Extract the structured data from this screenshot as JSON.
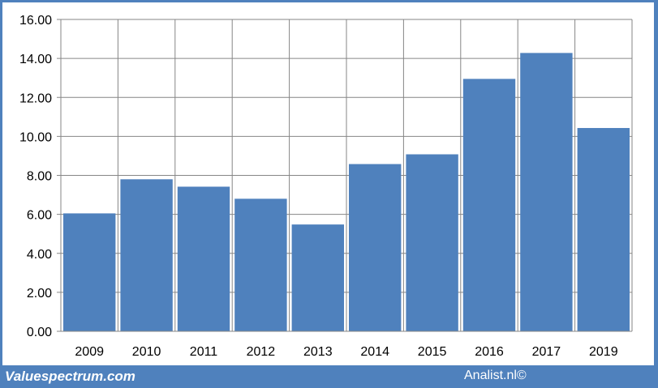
{
  "chart_data": {
    "type": "bar",
    "categories": [
      "2009",
      "2010",
      "2011",
      "2012",
      "2013",
      "2014",
      "2015",
      "2016",
      "2017",
      "2019"
    ],
    "values": [
      6.05,
      7.8,
      7.42,
      6.8,
      5.48,
      8.58,
      9.08,
      12.95,
      14.28,
      10.43
    ],
    "ylim": [
      0,
      16
    ],
    "yticks": [
      "0.00",
      "2.00",
      "4.00",
      "6.00",
      "8.00",
      "10.00",
      "12.00",
      "14.00",
      "16.00"
    ],
    "grid": true,
    "bar_color": "#4f81bd",
    "title": "",
    "xlabel": "",
    "ylabel": ""
  },
  "footer": {
    "left": "Valuespectrum.com",
    "right": "Analist.nl©"
  },
  "colors": {
    "background": "#4f81bd",
    "bar": "#4f81bd",
    "grid": "#868686"
  }
}
